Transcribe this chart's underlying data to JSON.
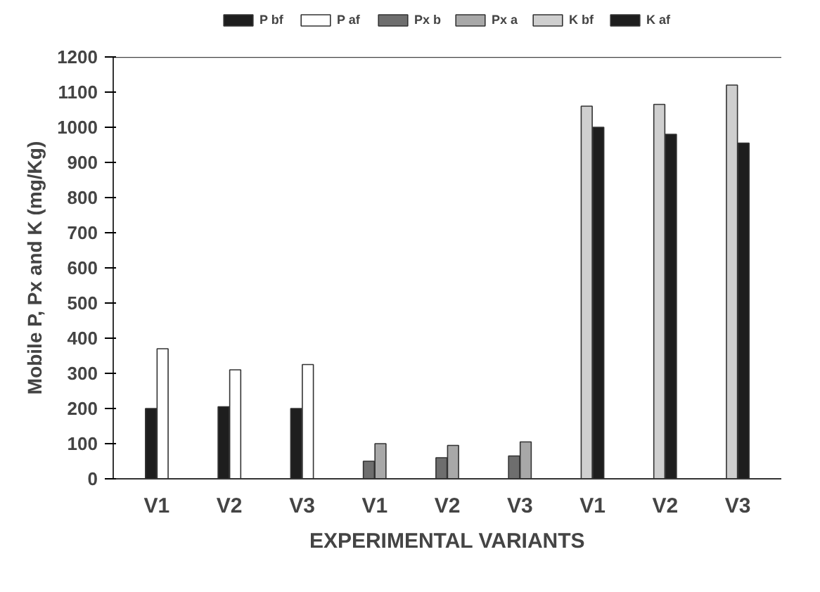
{
  "chart_data": {
    "type": "bar",
    "xlabel": "EXPERIMENTAL VARIANTS",
    "ylabel": "Mobile P, Px and K (mg/Kg)",
    "categories": [
      "V1",
      "V2",
      "V3",
      "V1",
      "V2",
      "V3",
      "V1",
      "V2",
      "V3"
    ],
    "series": [
      {
        "name": "P bf",
        "color": "#1e1e1e",
        "values": [
          200,
          205,
          200,
          null,
          null,
          null,
          null,
          null,
          null
        ]
      },
      {
        "name": "P af",
        "color": "#ffffff",
        "values": [
          370,
          310,
          325,
          null,
          null,
          null,
          null,
          null,
          null
        ]
      },
      {
        "name": "Px b",
        "color": "#6e6e6e",
        "values": [
          null,
          null,
          null,
          50,
          60,
          65,
          null,
          null,
          null
        ]
      },
      {
        "name": "Px a",
        "color": "#a8a8a8",
        "values": [
          null,
          null,
          null,
          100,
          95,
          105,
          null,
          null,
          null
        ]
      },
      {
        "name": "K bf",
        "color": "#cfcfcf",
        "values": [
          null,
          null,
          null,
          null,
          null,
          null,
          1060,
          1065,
          1120
        ]
      },
      {
        "name": "K af",
        "color": "#1e1e1e",
        "values": [
          null,
          null,
          null,
          null,
          null,
          null,
          1000,
          980,
          955
        ]
      }
    ],
    "ylim": [
      0,
      1200
    ],
    "yticks": [
      0,
      100,
      200,
      300,
      400,
      500,
      600,
      700,
      800,
      900,
      1000,
      1100,
      1200
    ],
    "grid": false,
    "legend": "top"
  }
}
